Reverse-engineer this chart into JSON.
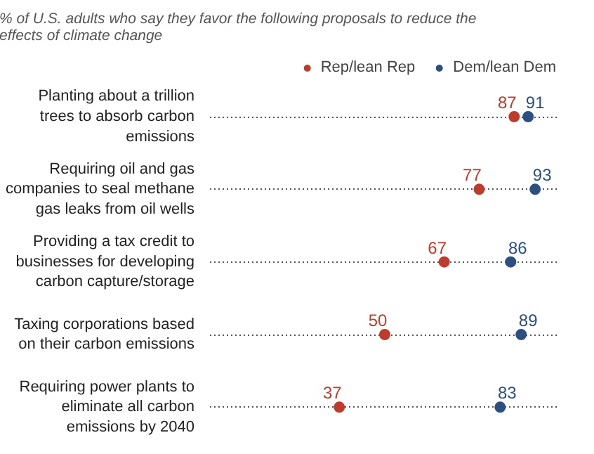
{
  "chart_data": {
    "type": "scatter",
    "orientation": "horizontal",
    "title": "% of U.S. adults who say they favor the following proposals to reduce the effects of climate change",
    "categories": [
      "Planting about a trillion trees to absorb carbon emissions",
      "Requiring oil and gas companies to seal methane gas leaks from oil wells",
      "Providing a tax credit to businesses for developing carbon capture/storage",
      "Taxing corporations based on their carbon emissions",
      "Requiring power plants to eliminate all carbon emissions by 2040"
    ],
    "series": [
      {
        "name": "Rep/lean Rep",
        "color": "#bf3b2c",
        "values": [
          87,
          77,
          67,
          50,
          37
        ]
      },
      {
        "name": "Dem/lean Dem",
        "color": "#2c4f82",
        "values": [
          91,
          93,
          86,
          89,
          83
        ]
      }
    ],
    "xlim": [
      0,
      100
    ],
    "tick_labels": "y",
    "grid": "y",
    "data_labels": true,
    "legend": "top right",
    "marker": "circle"
  }
}
